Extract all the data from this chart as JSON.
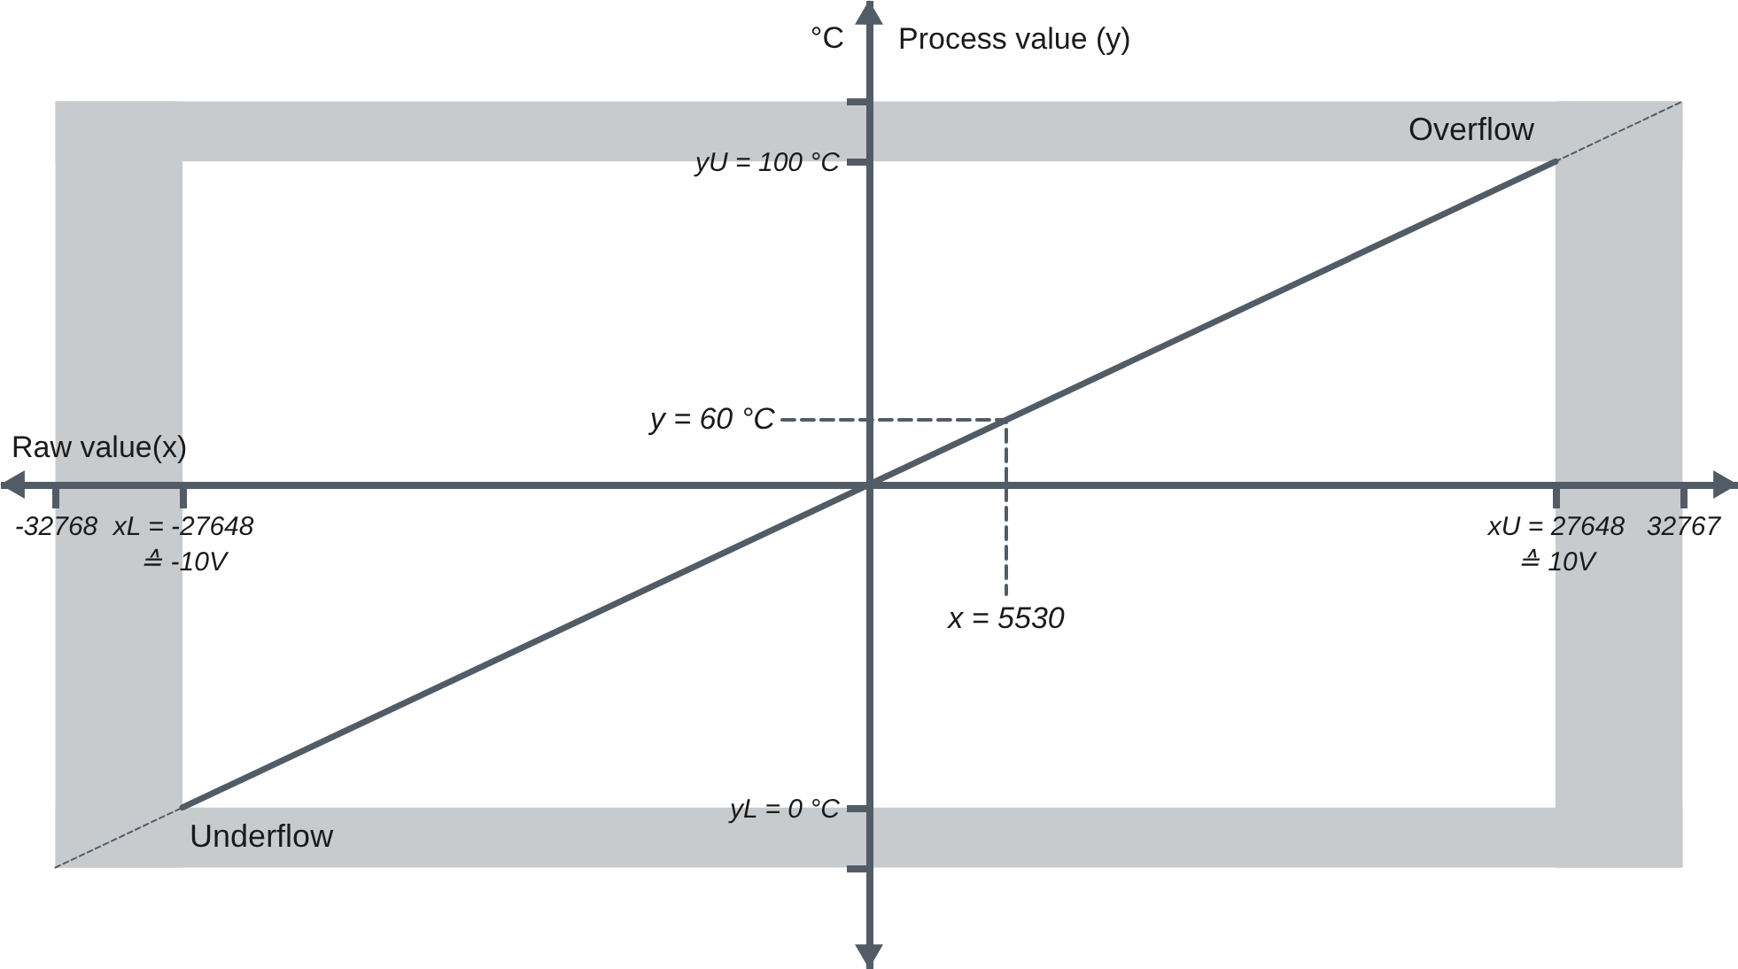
{
  "chart_data": {
    "type": "line",
    "xlabel": "Raw value(x)",
    "ylabel": "Process value (y)",
    "annotations": [
      "°C",
      {
        "text": "y = 60 °C",
        "x": -3500,
        "y": 60
      },
      {
        "text": "x = 5530",
        "x": 5530,
        "y": 33
      }
    ],
    "series": [
      {
        "x": [
          -27648,
          27648
        ],
        "values": [
          0,
          100
        ],
        "color": "#525c66",
        "line_style": "solid"
      },
      {
        "x": [
          -32768,
          -27648
        ],
        "values": [
          -9.3,
          0
        ],
        "color": "#525c66",
        "line_style": "dotted"
      },
      {
        "x": [
          27648,
          32767
        ],
        "values": [
          100,
          109.3
        ],
        "color": "#525c66",
        "line_style": "dotted"
      },
      {
        "x": [
          -3500,
          5530,
          5530
        ],
        "values": [
          60,
          60,
          33
        ],
        "color": "#525c66",
        "line_style": "dashed"
      }
    ],
    "xlim": [
      -35000,
      35000
    ],
    "ylim": [
      -25,
      125
    ],
    "xticks": [
      -32768,
      {
        "value": -27648,
        "label": "xL = -27648\n≙ -10V"
      },
      {
        "value": 27648,
        "label": "xU = 27648\n≙ 10V"
      },
      32767
    ],
    "yticks": [
      {
        "value": -9.3,
        "label": null
      },
      {
        "value": 0,
        "label": "yL = 0 °C"
      },
      {
        "value": 100,
        "label": "yU = 100 °C"
      },
      {
        "value": 109.3,
        "label": null
      }
    ],
    "bands": [
      {
        "axis": "x",
        "from": -32768,
        "to": -27648,
        "color": "#c8cbce"
      },
      {
        "axis": "x",
        "from": 27648,
        "to": 32767,
        "color": "#c8cbce"
      },
      {
        "axis": "y",
        "from": 100,
        "to": 109.3,
        "label": "Overflow",
        "color": "#c8cbce"
      },
      {
        "axis": "y",
        "from": -9.3,
        "to": 0,
        "label": "Underflow",
        "color": "#c8cbce"
      }
    ],
    "grid": false
  }
}
